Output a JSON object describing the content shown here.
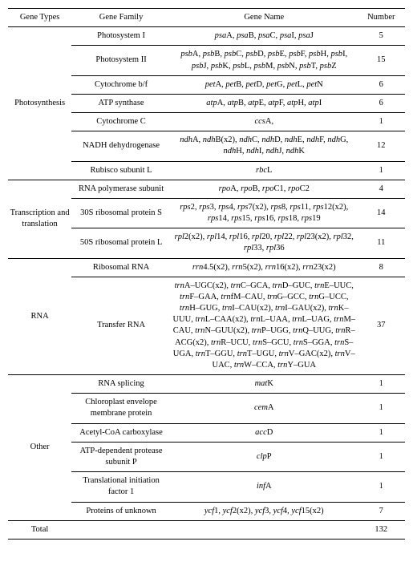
{
  "headers": {
    "types": "Gene Types",
    "family": "Gene Family",
    "name": "Gene Name",
    "number": "Number"
  },
  "groups": {
    "photo": {
      "label": "Photosynthesis"
    },
    "tt": {
      "label": "Transcription and translation"
    },
    "rna": {
      "label": "RNA"
    },
    "other": {
      "label": "Other"
    },
    "total": {
      "label": "Total"
    }
  },
  "rows": {
    "psi": {
      "family": "Photosystem I",
      "name_html": "<span class='it'>psa</span>A, <span class='it'>psa</span>B, <span class='it'>psa</span>C, <span class='it'>psa</span>I, <span class='it'>psa</span>J",
      "number": "5"
    },
    "psii": {
      "family": "Photosystem II",
      "name_html": "<span class='it'>psb</span>A, <span class='it'>psb</span>B, <span class='it'>psb</span>C, <span class='it'>psb</span>D, <span class='it'>psb</span>E, <span class='it'>psb</span>F, <span class='it'>psb</span>H, <span class='it'>psb</span>I, <span class='it'>psb</span>J, <span class='it'>psb</span>K, <span class='it'>psb</span>L, <span class='it'>psb</span>M, <span class='it'>psb</span>N, <span class='it'>psb</span>T, <span class='it'>psb</span>Z",
      "number": "15"
    },
    "cytbf": {
      "family": "Cytochrome b/f",
      "name_html": "<span class='it'>pet</span>A, <span class='it'>pet</span>B, <span class='it'>pet</span>D, <span class='it'>pet</span>G, <span class='it'>pet</span>L, <span class='it'>pet</span>N",
      "number": "6"
    },
    "atp": {
      "family": "ATP synthase",
      "name_html": "<span class='it'>atp</span>A, <span class='it'>atp</span>B, <span class='it'>atp</span>E, <span class='it'>atp</span>F, <span class='it'>atp</span>H, <span class='it'>atp</span>I",
      "number": "6"
    },
    "cytc": {
      "family": "Cytochrome C",
      "name_html": "<span class='it'>ccs</span>A,",
      "number": "1"
    },
    "nadh": {
      "family": "NADH dehydrogenase",
      "name_html": "<span class='it'>ndh</span>A, <span class='it'>ndh</span>B(x2), <span class='it'>ndh</span>C, <span class='it'>ndh</span>D, <span class='it'>ndh</span>E, <span class='it'>ndh</span>F, <span class='it'>ndh</span>G, <span class='it'>ndh</span>H, <span class='it'>ndh</span>I, <span class='it'>ndh</span>J, <span class='it'>ndh</span>K",
      "number": "12"
    },
    "rbcl": {
      "family": "Rubisco subunit L",
      "name_html": "<span class='it'>rbc</span>L",
      "number": "1"
    },
    "rpo": {
      "family": "RNA polymerase subunit",
      "name_html": "<span class='it'>rpo</span>A, <span class='it'>rpo</span>B, <span class='it'>rpo</span>C1, <span class='it'>rpo</span>C2",
      "number": "4"
    },
    "rps": {
      "family": "30S ribosomal protein S",
      "name_html": "<span class='it'>rps</span>2, <span class='it'>rps</span>3, <span class='it'>rps</span>4, <span class='it'>rps</span>7(x2), <span class='it'>rps</span>8, <span class='it'>rps</span>11, <span class='it'>rps</span>12(x2), <span class='it'>rps</span>14, <span class='it'>rps</span>15, <span class='it'>rps</span>16, <span class='it'>rps</span>18, <span class='it'>rps</span>19",
      "number": "14"
    },
    "rpl": {
      "family": "50S ribosomal protein L",
      "name_html": "<span class='it'>rpl</span>2(x2), <span class='it'>rpl</span>14, <span class='it'>rpl</span>16, <span class='it'>rpl</span>20, <span class='it'>rpl</span>22, <span class='it'>rpl</span>23(x2), <span class='it'>rpl</span>32, <span class='it'>rpl</span>33, <span class='it'>rpl</span>36",
      "number": "11"
    },
    "rrna": {
      "family": "Ribosomal RNA",
      "name_html": "<span class='it'>rrn</span>4.5(x2), <span class='it'>rrn</span>5(x2), <span class='it'>rrn</span>16(x2), <span class='it'>rrn</span>23(x2)",
      "number": "8"
    },
    "trna": {
      "family": "Transfer RNA",
      "name_html": "<span class='it'>trn</span>A–UGC(x2), <span class='it'>trn</span>C–GCA, <span class='it'>trn</span>D–GUC, <span class='it'>trn</span>E–UUC, <span class='it'>trn</span>F–GAA, <span class='it'>trn</span>fM–CAU, <span class='it'>trn</span>G–GCC, <span class='it'>trn</span>G–UCC, <span class='it'>trn</span>H–GUG, <span class='it'>trn</span>I–CAU(x2), <span class='it'>trn</span>I–GAU(x2), <span class='it'>trn</span>K–UUU, <span class='it'>trn</span>L–CAA(x2), <span class='it'>trn</span>L–UAA, <span class='it'>trn</span>L–UAG, <span class='it'>trn</span>M–CAU, <span class='it'>trn</span>N–GUU(x2), <span class='it'>trn</span>P–UGG, <span class='it'>trn</span>Q–UUG, <span class='it'>trn</span>R–ACG(x2), <span class='it'>trn</span>R–UCU, <span class='it'>trn</span>S–GCU, <span class='it'>trn</span>S–GGA, <span class='it'>trn</span>S–UGA, <span class='it'>trn</span>T–GGU, <span class='it'>trn</span>T–UGU, <span class='it'>trn</span>V–GAC(x2), <span class='it'>trn</span>V–UAC, <span class='it'>trn</span>W–CCA, <span class='it'>trn</span>Y–GUA",
      "number": "37"
    },
    "matk": {
      "family": "RNA splicing",
      "name_html": "<span class='it'>mat</span>K",
      "number": "1"
    },
    "cema": {
      "family": "Chloroplast envelope membrane protein",
      "name_html": "<span class='it'>cem</span>A",
      "number": "1"
    },
    "accd": {
      "family": "Acetyl-CoA carboxylase",
      "name_html": "<span class='it'>acc</span>D",
      "number": "1"
    },
    "clpp": {
      "family": "ATP-dependent protease subunit P",
      "name_html": "<span class='it'>clp</span>P",
      "number": "1"
    },
    "infa": {
      "family": "Translational initiation factor 1",
      "name_html": "<span class='it'>inf</span>A",
      "number": "1"
    },
    "ycf": {
      "family": "Proteins of unknown",
      "name_html": "<span class='it'>ycf</span>1, <span class='it'>ycf</span>2(x2), <span class='it'>ycf</span>3, <span class='it'>ycf</span>4, <span class='it'>ycf</span>15(x2)",
      "number": "7"
    }
  },
  "total": {
    "number": "132"
  }
}
